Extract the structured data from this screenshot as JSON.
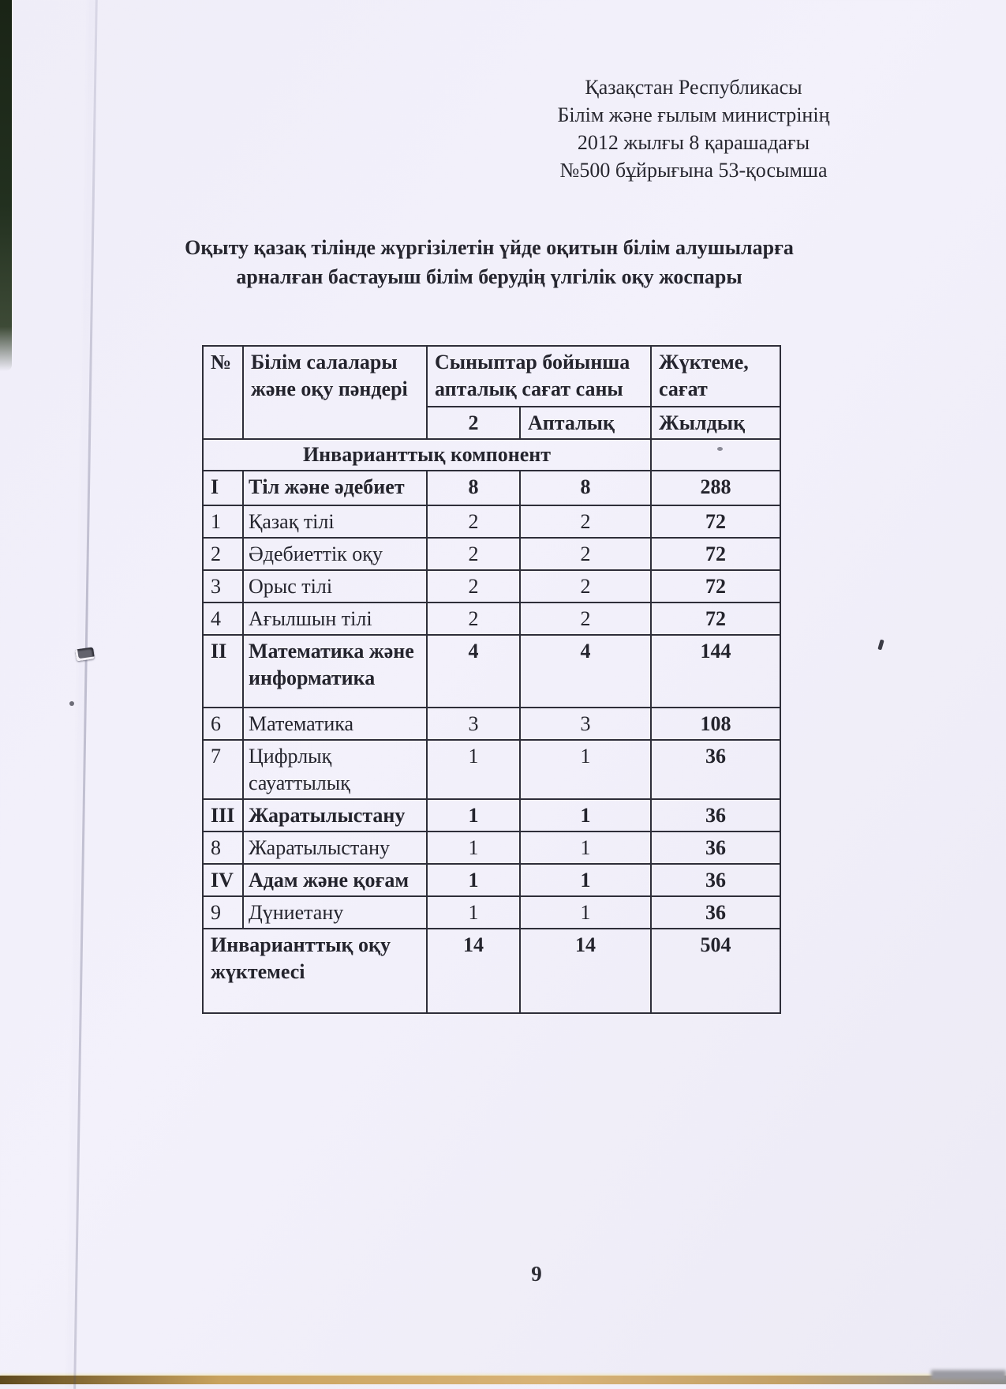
{
  "colors": {
    "paper": "#f1eff9",
    "ink": "#26262f"
  },
  "letterhead": {
    "lines": [
      "Қазақстан Республикасы",
      "Білім және ғылым министрінің",
      "2012 жылғы 8 қарашадағы",
      "№500 бұйрығына 53-қосымша"
    ]
  },
  "title": {
    "line1": "Оқыту қазақ тілінде жүргізілетін үйде оқитын білім алушыларға",
    "line2": "арналған бастауыш білім берудің үлгілік оқу жоспары"
  },
  "table": {
    "headers": {
      "no": "№",
      "subject": "Білім салалары және оқу пәндері",
      "weekly_group": "Сыныптар бойынша апталық сағат саны",
      "load_group": "Жүктеме, сағат",
      "sub_grade": "2",
      "sub_weekly": "Апталық",
      "sub_yearly": "Жылдық"
    },
    "section_header": "Инварианттық компонент",
    "rows": [
      {
        "no": "I",
        "subject": "Тіл және әдебиет",
        "grade2": "8",
        "weekly": "8",
        "yearly": "288",
        "bold": true
      },
      {
        "no": "1",
        "subject": "Қазақ тілі",
        "grade2": "2",
        "weekly": "2",
        "yearly": "72",
        "bold": false
      },
      {
        "no": "2",
        "subject": "Әдебиеттік оқу",
        "grade2": "2",
        "weekly": "2",
        "yearly": "72",
        "bold": false
      },
      {
        "no": "3",
        "subject": "Орыс тілі",
        "grade2": "2",
        "weekly": "2",
        "yearly": "72",
        "bold": false
      },
      {
        "no": "4",
        "subject": "Ағылшын тілі",
        "grade2": "2",
        "weekly": "2",
        "yearly": "72",
        "bold": false
      },
      {
        "no": "II",
        "subject": "Математика және информатика",
        "grade2": "4",
        "weekly": "4",
        "yearly": "144",
        "bold": true
      },
      {
        "no": "6",
        "subject": "Математика",
        "grade2": "3",
        "weekly": "3",
        "yearly": "108",
        "bold": false
      },
      {
        "no": "7",
        "subject": "Цифрлық сауаттылық",
        "grade2": "1",
        "weekly": "1",
        "yearly": "36",
        "bold": false
      },
      {
        "no": "III",
        "subject": "Жаратылыстану",
        "grade2": "1",
        "weekly": "1",
        "yearly": "36",
        "bold": true
      },
      {
        "no": "8",
        "subject": "Жаратылыстану",
        "grade2": "1",
        "weekly": "1",
        "yearly": "36",
        "bold": false
      },
      {
        "no": "IV",
        "subject": "Адам және қоғам",
        "grade2": "1",
        "weekly": "1",
        "yearly": "36",
        "bold": true
      },
      {
        "no": "9",
        "subject": "Дүниетану",
        "grade2": "1",
        "weekly": "1",
        "yearly": "36",
        "bold": false
      }
    ],
    "total": {
      "label": "Инварианттық оқу жүктемесі",
      "grade2": "14",
      "weekly": "14",
      "yearly": "504"
    }
  },
  "page": {
    "number": "9"
  }
}
